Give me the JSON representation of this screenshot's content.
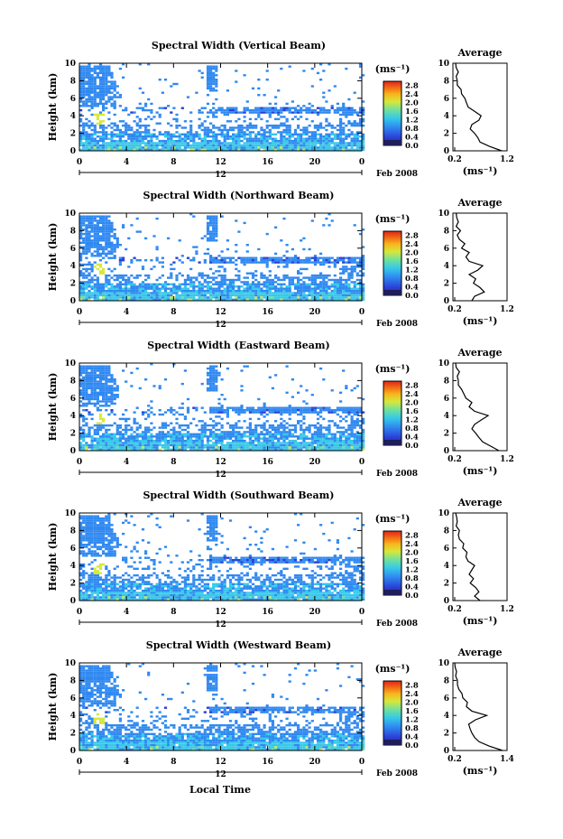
{
  "figure": {
    "bottom_xlabel": "Local Time"
  },
  "chart_data": [
    {
      "type": "heatmap",
      "title": "Spectral Width (Vertical Beam)",
      "ylabel": "Height (km)",
      "x_ticks": [
        "0",
        "4",
        "8",
        "12",
        "16",
        "20",
        "0"
      ],
      "y_ticks": [
        "0",
        "2",
        "4",
        "6",
        "8",
        "10"
      ],
      "xlim": [
        0,
        24
      ],
      "ylim": [
        0,
        10
      ],
      "date_day": "12",
      "date_label": "Feb 2008",
      "colorbar": {
        "unit": "(ms⁻¹)",
        "ticks": [
          "0.0",
          "0.4",
          "0.8",
          "1.2",
          "1.6",
          "2.0",
          "2.4",
          "2.8"
        ],
        "range": [
          0.0,
          3.0
        ]
      },
      "profile": {
        "title": "Average",
        "xlabel": "(ms⁻¹)",
        "x_ticks": [
          "0.2",
          "1.2"
        ],
        "xlim": [
          0.2,
          1.2
        ],
        "y_ticks": [
          "0",
          "2",
          "4",
          "6",
          "8",
          "10"
        ],
        "height_km": [
          0,
          0.5,
          1,
          1.5,
          2,
          2.5,
          3,
          3.5,
          4,
          4.5,
          5,
          5.5,
          6,
          6.5,
          7,
          7.5,
          8,
          8.5,
          9,
          9.5,
          10
        ],
        "width_ms": [
          1.1,
          0.88,
          0.7,
          0.66,
          0.6,
          0.52,
          0.55,
          0.68,
          0.72,
          0.6,
          0.48,
          0.45,
          0.42,
          0.36,
          0.35,
          0.28,
          0.28,
          0.26,
          0.3,
          0.26,
          0.25
        ]
      }
    },
    {
      "type": "heatmap",
      "title": "Spectral Width (Northward Beam)",
      "ylabel": "Height (km)",
      "x_ticks": [
        "0",
        "4",
        "8",
        "12",
        "16",
        "20",
        "0"
      ],
      "y_ticks": [
        "0",
        "2",
        "4",
        "6",
        "8",
        "10"
      ],
      "xlim": [
        0,
        24
      ],
      "ylim": [
        0,
        10
      ],
      "date_day": "12",
      "date_label": "Feb 2008",
      "colorbar": {
        "unit": "(ms⁻¹)",
        "ticks": [
          "0.0",
          "0.4",
          "0.8",
          "1.2",
          "1.6",
          "2.0",
          "2.4",
          "2.8"
        ],
        "range": [
          0.0,
          3.0
        ]
      },
      "profile": {
        "title": "Average",
        "xlabel": "(ms⁻¹)",
        "x_ticks": [
          "0.2",
          "1.2"
        ],
        "xlim": [
          0.2,
          1.2
        ],
        "y_ticks": [
          "0",
          "2",
          "4",
          "6",
          "8",
          "10"
        ],
        "height_km": [
          0,
          0.5,
          1,
          1.5,
          2,
          2.5,
          3,
          3.5,
          4,
          4.5,
          5,
          5.5,
          6,
          6.5,
          7,
          7.5,
          8,
          8.5,
          9,
          9.5,
          10
        ],
        "width_ms": [
          0.55,
          0.6,
          0.78,
          0.7,
          0.58,
          0.62,
          0.5,
          0.66,
          0.75,
          0.5,
          0.44,
          0.5,
          0.36,
          0.42,
          0.32,
          0.28,
          0.34,
          0.26,
          0.3,
          0.27,
          0.26
        ]
      }
    },
    {
      "type": "heatmap",
      "title": "Spectral Width (Eastward Beam)",
      "ylabel": "Height (km)",
      "x_ticks": [
        "0",
        "4",
        "8",
        "12",
        "16",
        "20",
        "0"
      ],
      "y_ticks": [
        "0",
        "2",
        "4",
        "6",
        "8",
        "10"
      ],
      "xlim": [
        0,
        24
      ],
      "ylim": [
        0,
        10
      ],
      "date_day": "12",
      "date_label": "Feb 2008",
      "colorbar": {
        "unit": "(ms⁻¹)",
        "ticks": [
          "0.0",
          "0.4",
          "0.8",
          "1.2",
          "1.6",
          "2.0",
          "2.4",
          "2.8"
        ],
        "range": [
          0.0,
          3.0
        ]
      },
      "profile": {
        "title": "Average",
        "xlabel": "(ms⁻¹)",
        "x_ticks": [
          "0.2",
          "1.2"
        ],
        "xlim": [
          0.2,
          1.2
        ],
        "y_ticks": [
          "0",
          "2",
          "4",
          "6",
          "8",
          "10"
        ],
        "height_km": [
          0,
          0.5,
          1,
          1.5,
          2,
          2.5,
          3,
          3.5,
          4,
          4.5,
          5,
          5.5,
          6,
          6.5,
          7,
          7.5,
          8,
          8.5,
          9,
          9.5,
          10
        ],
        "width_ms": [
          1.05,
          0.9,
          0.75,
          0.68,
          0.62,
          0.55,
          0.6,
          0.72,
          0.85,
          0.6,
          0.5,
          0.55,
          0.44,
          0.4,
          0.36,
          0.3,
          0.3,
          0.28,
          0.32,
          0.26,
          0.25
        ]
      }
    },
    {
      "type": "heatmap",
      "title": "Spectral Width (Southward Beam)",
      "ylabel": "Height (km)",
      "x_ticks": [
        "0",
        "4",
        "8",
        "12",
        "16",
        "20",
        "0"
      ],
      "y_ticks": [
        "0",
        "2",
        "4",
        "6",
        "8",
        "10"
      ],
      "xlim": [
        0,
        24
      ],
      "ylim": [
        0,
        10
      ],
      "date_day": "12",
      "date_label": "Feb 2008",
      "colorbar": {
        "unit": "(ms⁻¹)",
        "ticks": [
          "0.0",
          "0.4",
          "0.8",
          "1.2",
          "1.6",
          "2.0",
          "2.4",
          "2.8"
        ],
        "range": [
          0.0,
          3.0
        ]
      },
      "profile": {
        "title": "Average",
        "xlabel": "(ms⁻¹)",
        "x_ticks": [
          "0.2",
          "1.2"
        ],
        "xlim": [
          0.2,
          1.2
        ],
        "y_ticks": [
          "0",
          "2",
          "4",
          "6",
          "8",
          "10"
        ],
        "height_km": [
          0,
          0.5,
          1,
          1.5,
          2,
          2.5,
          3,
          3.5,
          4,
          4.5,
          5,
          5.5,
          6,
          6.5,
          7,
          7.5,
          8,
          8.5,
          9,
          9.5,
          10
        ],
        "width_ms": [
          0.7,
          0.6,
          0.68,
          0.62,
          0.52,
          0.58,
          0.5,
          0.55,
          0.6,
          0.48,
          0.44,
          0.46,
          0.38,
          0.4,
          0.32,
          0.3,
          0.32,
          0.26,
          0.28,
          0.27,
          0.25
        ]
      }
    },
    {
      "type": "heatmap",
      "title": "Spectral Width (Westward Beam)",
      "ylabel": "Height (km)",
      "x_ticks": [
        "0",
        "4",
        "8",
        "12",
        "16",
        "20",
        "0"
      ],
      "y_ticks": [
        "0",
        "2",
        "4",
        "6",
        "8",
        "10"
      ],
      "xlim": [
        0,
        24
      ],
      "ylim": [
        0,
        10
      ],
      "date_day": "12",
      "date_label": "Feb 2008",
      "colorbar": {
        "unit": "(ms⁻¹)",
        "ticks": [
          "0.0",
          "0.4",
          "0.8",
          "1.2",
          "1.6",
          "2.0",
          "2.4",
          "2.8"
        ],
        "range": [
          0.0,
          3.0
        ]
      },
      "profile": {
        "title": "Average",
        "xlabel": "(ms⁻¹)",
        "x_ticks": [
          "0.2",
          "1.4"
        ],
        "xlim": [
          0.2,
          1.4
        ],
        "y_ticks": [
          "0",
          "2",
          "4",
          "6",
          "8",
          "10"
        ],
        "height_km": [
          0,
          0.5,
          1,
          1.5,
          2,
          2.5,
          3,
          3.5,
          4,
          4.5,
          5,
          5.5,
          6,
          6.5,
          7,
          7.5,
          8,
          8.5,
          9,
          9.5,
          10
        ],
        "width_ms": [
          1.3,
          1.0,
          0.78,
          0.68,
          0.62,
          0.58,
          0.55,
          0.7,
          0.95,
          0.62,
          0.5,
          0.52,
          0.42,
          0.4,
          0.33,
          0.3,
          0.3,
          0.26,
          0.28,
          0.25,
          0.24
        ]
      }
    }
  ]
}
